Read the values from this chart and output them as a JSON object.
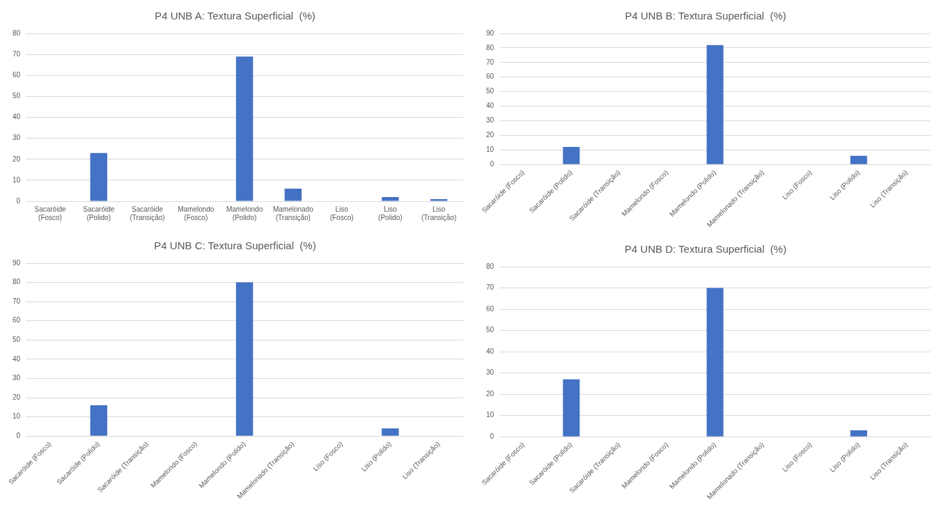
{
  "chart_data": [
    {
      "type": "bar",
      "title": "P4 UNB A: Textura Superficial  (%)",
      "categories": [
        "Sacaróide (Fosco)",
        "Sacaróide (Polido)",
        "Sacaróide (Transição)",
        "Mamelondo (Fosco)",
        "Mamelondo (Polido)",
        "Mamelonado (Transição)",
        "Liso (Fosco)",
        "Liso (Polido)",
        "Liso (Transição)"
      ],
      "values": [
        0,
        23,
        0,
        0,
        69,
        6,
        0,
        2,
        1
      ],
      "color": "#4472c4",
      "ylim": [
        0,
        80
      ],
      "yticks": [
        0,
        10,
        20,
        30,
        40,
        50,
        60,
        70,
        80
      ],
      "grid": "y"
    },
    {
      "type": "bar",
      "title": "P4 UNB B: Textura Superficial  (%)",
      "categories": [
        "Sacaróide (Fosco)",
        "Sacaróide (Polido)",
        "Sacaróide (Transição)",
        "Mamelondo (Fosco)",
        "Mamelondo (Polido)",
        "Mamelonado (Transição)",
        "Liso (Fosco)",
        "Liso (Polido)",
        "Liso (Transição)"
      ],
      "values": [
        0,
        12,
        0,
        0,
        82,
        0,
        0,
        6,
        0
      ],
      "color": "#4472c4",
      "ylim": [
        0,
        90
      ],
      "yticks": [
        0,
        10,
        20,
        30,
        40,
        50,
        60,
        70,
        80,
        90
      ],
      "grid": "y"
    },
    {
      "type": "bar",
      "title": "P4 UNB C: Textura Superficial  (%)",
      "categories": [
        "Sacaróide (Fosco)",
        "Sacaróide (Polido)",
        "Sacaróide (Transição)",
        "Mamelondo (Fosco)",
        "Mamelondo (Polido)",
        "Mamelonado (Transição)",
        "Liso (Fosco)",
        "Liso (Polido)",
        "Liso (Transição)"
      ],
      "values": [
        0,
        16,
        0,
        0,
        80,
        0,
        0,
        4,
        0
      ],
      "color": "#4472c4",
      "ylim": [
        0,
        90
      ],
      "yticks": [
        0,
        10,
        20,
        30,
        40,
        50,
        60,
        70,
        80,
        90
      ],
      "grid": "y"
    },
    {
      "type": "bar",
      "title": "P4 UNB D: Textura Superficial  (%)",
      "categories": [
        "Sacaróide (Fosco)",
        "Sacaróide (Polido)",
        "Sacaróide (Transição)",
        "Mamelondo (Fosco)",
        "Mamelondo (Polido)",
        "Mamelonado (Transição)",
        "Liso (Fosco)",
        "Liso (Polido)",
        "Liso (Transição)"
      ],
      "values": [
        0,
        27,
        0,
        0,
        70,
        0,
        0,
        3,
        0
      ],
      "color": "#4472c4",
      "ylim": [
        0,
        80
      ],
      "yticks": [
        0,
        10,
        20,
        30,
        40,
        50,
        60,
        70,
        80
      ],
      "grid": "y"
    }
  ]
}
